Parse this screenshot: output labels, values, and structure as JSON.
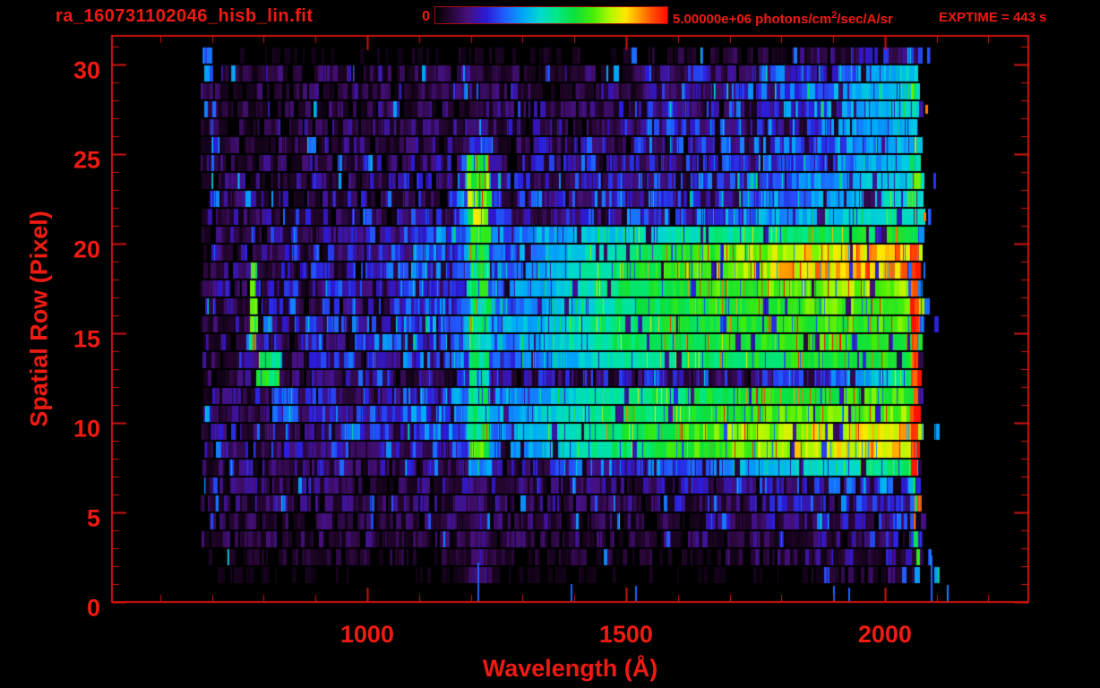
{
  "chart_data": {
    "type": "heatmap",
    "title": "ra_160731102046_hisb_lin.fit",
    "exptime_label": "EXPTIME = 443 s",
    "xlabel": "Wavelength (Å)",
    "ylabel": "Spatial Row (Pixel)",
    "xlim": [
      507,
      2277
    ],
    "ylim": [
      0,
      31.6
    ],
    "x_ticks_major": [
      1000,
      1500,
      2000
    ],
    "x_tick_minor_step": 100,
    "y_ticks_major": [
      0,
      5,
      10,
      15,
      20,
      25,
      30
    ],
    "y_tick_minor_step": 1,
    "grid": false,
    "legend": "none",
    "colorbar": {
      "min": 0,
      "max": 5000000,
      "min_label": "0",
      "max_label_prefix": "5.00000e+06 photons/cm",
      "max_label_sup": "2",
      "max_label_suffix": "/sec/A/sr",
      "stops": [
        [
          0.0,
          "#000000"
        ],
        [
          0.06,
          "#24052e"
        ],
        [
          0.14,
          "#45107c"
        ],
        [
          0.22,
          "#2b1ad8"
        ],
        [
          0.3,
          "#2060ff"
        ],
        [
          0.38,
          "#00a8f8"
        ],
        [
          0.45,
          "#00d8d0"
        ],
        [
          0.52,
          "#00e88a"
        ],
        [
          0.6,
          "#0ce03c"
        ],
        [
          0.68,
          "#44ee08"
        ],
        [
          0.76,
          "#b8f800"
        ],
        [
          0.82,
          "#ffe800"
        ],
        [
          0.88,
          "#ff9800"
        ],
        [
          0.94,
          "#ff4800"
        ],
        [
          1.0,
          "#ff0c00"
        ]
      ]
    },
    "data_wavelength_range": [
      676,
      2066
    ],
    "rows": [
      {
        "row": 0,
        "profile": [
          [
            675,
            0.012
          ],
          [
            2050,
            0.012
          ]
        ]
      },
      {
        "row": 1,
        "profile": [
          [
            675,
            0.02
          ],
          [
            1800,
            0.02
          ],
          [
            1950,
            0.06
          ],
          [
            2050,
            0.08
          ]
        ]
      },
      {
        "row": 2,
        "profile": [
          [
            675,
            0.045
          ],
          [
            1600,
            0.05
          ],
          [
            1900,
            0.1
          ],
          [
            2050,
            0.14
          ]
        ]
      },
      {
        "row": 3,
        "profile": [
          [
            675,
            0.07
          ],
          [
            1500,
            0.08
          ],
          [
            1900,
            0.12
          ],
          [
            2050,
            0.16
          ]
        ]
      },
      {
        "row": 4,
        "profile": [
          [
            675,
            0.07
          ],
          [
            1500,
            0.08
          ],
          [
            1900,
            0.14
          ],
          [
            2050,
            0.18
          ]
        ]
      },
      {
        "row": 5,
        "profile": [
          [
            675,
            0.085
          ],
          [
            1500,
            0.1
          ],
          [
            1800,
            0.16
          ],
          [
            2050,
            0.28
          ]
        ]
      },
      {
        "row": 6,
        "profile": [
          [
            675,
            0.085
          ],
          [
            1500,
            0.12
          ],
          [
            1800,
            0.2
          ],
          [
            2050,
            0.3
          ]
        ]
      },
      {
        "row": 7,
        "profile": [
          [
            675,
            0.09
          ],
          [
            1300,
            0.13
          ],
          [
            1550,
            0.28
          ],
          [
            1800,
            0.42
          ],
          [
            2050,
            0.52
          ]
        ]
      },
      {
        "row": 8,
        "profile": [
          [
            675,
            0.1
          ],
          [
            1250,
            0.3
          ],
          [
            1500,
            0.55
          ],
          [
            1700,
            0.68
          ],
          [
            1850,
            0.78
          ],
          [
            2050,
            0.84
          ]
        ]
      },
      {
        "row": 9,
        "profile": [
          [
            675,
            0.1
          ],
          [
            1250,
            0.32
          ],
          [
            1500,
            0.58
          ],
          [
            1700,
            0.7
          ],
          [
            1900,
            0.8
          ],
          [
            2050,
            0.82
          ]
        ]
      },
      {
        "row": 10,
        "profile": [
          [
            675,
            0.1
          ],
          [
            1250,
            0.34
          ],
          [
            1500,
            0.55
          ],
          [
            1750,
            0.64
          ],
          [
            2050,
            0.7
          ]
        ]
      },
      {
        "row": 11,
        "profile": [
          [
            675,
            0.11
          ],
          [
            1250,
            0.3
          ],
          [
            1500,
            0.52
          ],
          [
            1750,
            0.62
          ],
          [
            2050,
            0.66
          ]
        ]
      },
      {
        "row": 12,
        "profile": [
          [
            675,
            0.07
          ],
          [
            1250,
            0.13
          ],
          [
            1650,
            0.16
          ],
          [
            1850,
            0.22
          ],
          [
            1980,
            0.4
          ],
          [
            2050,
            0.55
          ]
        ]
      },
      {
        "row": 13,
        "profile": [
          [
            675,
            0.1
          ],
          [
            1250,
            0.28
          ],
          [
            1500,
            0.48
          ],
          [
            1700,
            0.58
          ],
          [
            2050,
            0.62
          ]
        ]
      },
      {
        "row": 14,
        "profile": [
          [
            675,
            0.1
          ],
          [
            1250,
            0.33
          ],
          [
            1500,
            0.55
          ],
          [
            1800,
            0.63
          ],
          [
            2050,
            0.66
          ]
        ]
      },
      {
        "row": 15,
        "profile": [
          [
            675,
            0.1
          ],
          [
            1250,
            0.34
          ],
          [
            1550,
            0.58
          ],
          [
            1800,
            0.65
          ],
          [
            2050,
            0.68
          ]
        ]
      },
      {
        "row": 16,
        "profile": [
          [
            675,
            0.1
          ],
          [
            1250,
            0.3
          ],
          [
            1550,
            0.56
          ],
          [
            1800,
            0.66
          ],
          [
            2050,
            0.7
          ]
        ]
      },
      {
        "row": 17,
        "profile": [
          [
            675,
            0.1
          ],
          [
            1250,
            0.3
          ],
          [
            1550,
            0.6
          ],
          [
            1800,
            0.7
          ],
          [
            2050,
            0.73
          ]
        ]
      },
      {
        "row": 18,
        "profile": [
          [
            675,
            0.1
          ],
          [
            1250,
            0.3
          ],
          [
            1550,
            0.62
          ],
          [
            1750,
            0.75
          ],
          [
            1900,
            0.85
          ],
          [
            2050,
            0.88
          ]
        ]
      },
      {
        "row": 19,
        "profile": [
          [
            675,
            0.1
          ],
          [
            1250,
            0.28
          ],
          [
            1550,
            0.58
          ],
          [
            1750,
            0.72
          ],
          [
            1900,
            0.8
          ],
          [
            2050,
            0.84
          ]
        ]
      },
      {
        "row": 20,
        "profile": [
          [
            675,
            0.1
          ],
          [
            1230,
            0.3
          ],
          [
            1450,
            0.42
          ],
          [
            1650,
            0.5
          ],
          [
            1850,
            0.56
          ],
          [
            2050,
            0.6
          ]
        ]
      },
      {
        "row": 21,
        "profile": [
          [
            675,
            0.09
          ],
          [
            1300,
            0.18
          ],
          [
            1650,
            0.28
          ],
          [
            1900,
            0.42
          ],
          [
            2050,
            0.5
          ]
        ]
      },
      {
        "row": 22,
        "profile": [
          [
            675,
            0.08
          ],
          [
            1300,
            0.16
          ],
          [
            1700,
            0.26
          ],
          [
            1900,
            0.38
          ],
          [
            2050,
            0.46
          ]
        ]
      },
      {
        "row": 23,
        "profile": [
          [
            675,
            0.08
          ],
          [
            1300,
            0.15
          ],
          [
            1700,
            0.25
          ],
          [
            1900,
            0.36
          ],
          [
            2050,
            0.44
          ]
        ]
      },
      {
        "row": 24,
        "profile": [
          [
            675,
            0.08
          ],
          [
            1350,
            0.14
          ],
          [
            1750,
            0.24
          ],
          [
            1950,
            0.34
          ],
          [
            2050,
            0.42
          ]
        ]
      },
      {
        "row": 25,
        "profile": [
          [
            675,
            0.07
          ],
          [
            1400,
            0.12
          ],
          [
            1800,
            0.24
          ],
          [
            2050,
            0.4
          ]
        ]
      },
      {
        "row": 26,
        "profile": [
          [
            675,
            0.07
          ],
          [
            1400,
            0.12
          ],
          [
            1850,
            0.26
          ],
          [
            2050,
            0.42
          ]
        ]
      },
      {
        "row": 27,
        "profile": [
          [
            675,
            0.07
          ],
          [
            1450,
            0.11
          ],
          [
            1850,
            0.28
          ],
          [
            2050,
            0.44
          ]
        ]
      },
      {
        "row": 28,
        "profile": [
          [
            675,
            0.07
          ],
          [
            1500,
            0.1
          ],
          [
            1850,
            0.3
          ],
          [
            2050,
            0.45
          ]
        ]
      },
      {
        "row": 29,
        "profile": [
          [
            675,
            0.07
          ],
          [
            1500,
            0.1
          ],
          [
            1900,
            0.28
          ],
          [
            2050,
            0.42
          ]
        ]
      },
      {
        "row": 30,
        "profile": [
          [
            675,
            0.02
          ],
          [
            1500,
            0.03
          ],
          [
            1900,
            0.1
          ],
          [
            2050,
            0.2
          ]
        ]
      }
    ],
    "features": {
      "lyman_alpha": {
        "center": 1216,
        "width": 40,
        "row_values": [
          0,
          0.12,
          0.12,
          0.12,
          0.12,
          0.12,
          0.12,
          0.35,
          0.62,
          0.55,
          0.5,
          0.5,
          0.48,
          0.52,
          0.54,
          0.54,
          0.52,
          0.55,
          0.56,
          0.58,
          0.62,
          0.68,
          0.68,
          0.66,
          0.58,
          0.25,
          0.12,
          0.06,
          0,
          0,
          0
        ]
      },
      "arc_segments": [
        {
          "wavelength": [
            772,
            788
          ],
          "rows": [
            13.8,
            18.2
          ],
          "value": 0.6
        },
        {
          "wavelength": [
            788,
            832
          ],
          "rows": [
            11.2,
            13.8
          ],
          "value": 0.55
        },
        {
          "wavelength": [
            815,
            868
          ],
          "rows": [
            9.6,
            11.2
          ],
          "value": 0.3
        }
      ],
      "blue_features": [
        {
          "wavelength": [
            677,
            701
          ],
          "rows": [
            28.6,
            30.4
          ],
          "value": 0.34
        },
        {
          "wavelength": [
            697,
            707
          ],
          "rows": [
            22.0,
            27.6
          ],
          "value": 0.28
        }
      ],
      "edge_column": {
        "wavelength": [
          2052,
          2067
        ],
        "bright_rows": [
          7,
          19
        ],
        "value": 0.95
      },
      "right_outliers": {
        "wavelength": [
          2067,
          2122
        ],
        "probability": 0.05,
        "value": 0.28
      },
      "red_specks": [
        {
          "row": 21,
          "wavelength": 2075
        },
        {
          "row": 27,
          "wavelength": 2078
        }
      ],
      "bottom_spikes": [
        {
          "wavelength": 1213,
          "rows": [
            0,
            2.2
          ]
        },
        {
          "wavelength": 1392,
          "rows": [
            0,
            1.0
          ]
        },
        {
          "wavelength": 1518,
          "rows": [
            0,
            0.9
          ]
        },
        {
          "wavelength": 1899,
          "rows": [
            0,
            0.9
          ]
        },
        {
          "wavelength": 1930,
          "rows": [
            0,
            0.8
          ]
        },
        {
          "wavelength": 2089,
          "rows": [
            0,
            2.6
          ]
        }
      ]
    }
  }
}
